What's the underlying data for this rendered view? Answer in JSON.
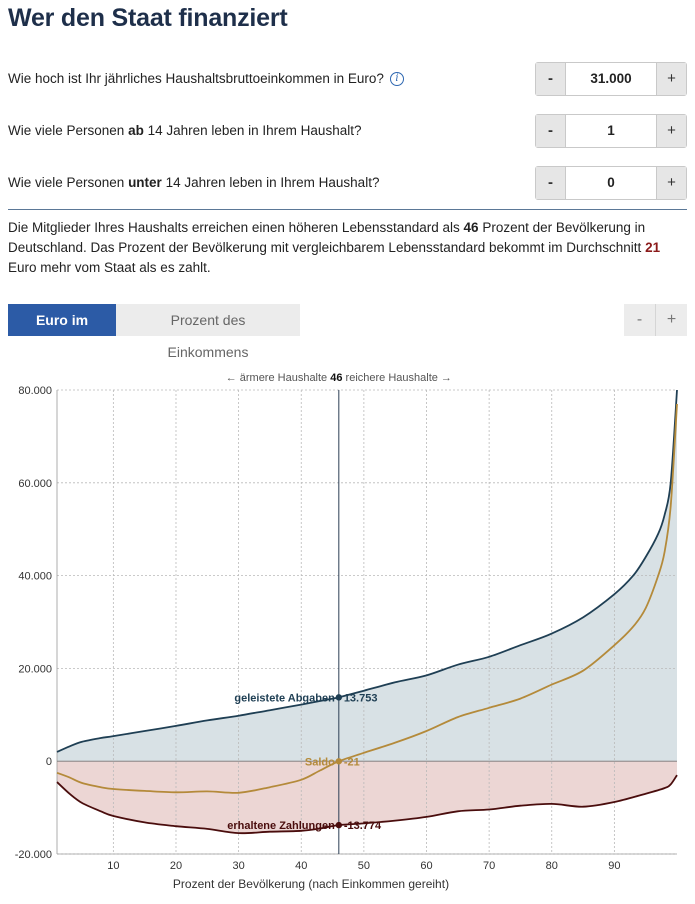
{
  "page": {
    "title": "Wer den Staat finanziert"
  },
  "questions": [
    {
      "label_pre": "Wie hoch ist Ihr jährliches Haushaltsbruttoeinkommen in Euro?",
      "label_bold": "",
      "label_post": "",
      "value": "31.000",
      "minus": "-",
      "plus": "+"
    },
    {
      "label_pre": "Wie viele Personen ",
      "label_bold": "ab",
      "label_post": " 14 Jahren leben in Ihrem Haushalt?",
      "value": "1",
      "minus": "-",
      "plus": "+"
    },
    {
      "label_pre": "Wie viele Personen ",
      "label_bold": "unter",
      "label_post": " 14 Jahren leben in Ihrem Haushalt?",
      "value": "0",
      "minus": "-",
      "plus": "+"
    }
  ],
  "info_icon": "info-icon",
  "summary": {
    "part1": "Die Mitglieder Ihres Haushalts erreichen einen höheren Lebensstandard als ",
    "percent": "46",
    "part2": " Prozent der Bevölkerung in Deutschland. Das Prozent der Bevölkerung mit vergleichbarem Lebensstandard bekommt im Durchschnitt ",
    "amount": "21",
    "part3": " Euro mehr vom Staat als es zahlt."
  },
  "tabs": {
    "active": "Euro im Jahr",
    "inactive": "Prozent des Einkommens"
  },
  "zoom": {
    "minus": "-",
    "plus": "+"
  },
  "colors": {
    "paid": "#1f3f54",
    "paid_fill": "#d8e1e5",
    "received": "#4a0d0d",
    "received_fill": "#ecd6d4",
    "saldo": "#b48a3a",
    "marker": "#2c3e55",
    "accent": "#2c5ba6"
  },
  "chart_data": {
    "type": "area",
    "top_label_left": "← ärmere Haushalte",
    "top_label_value": "46",
    "top_label_right": "reichere Haushalte →",
    "xlabel": "Prozent der Bevölkerung (nach Einkommen gereiht)",
    "xlim": [
      1,
      100
    ],
    "ylim": [
      -20000,
      80000
    ],
    "xticks": [
      10,
      20,
      30,
      40,
      50,
      60,
      70,
      80,
      90
    ],
    "yticks": [
      -20000,
      0,
      20000,
      40000,
      60000,
      80000
    ],
    "ytick_labels": [
      "-20.000",
      "0",
      "20.000",
      "40.000",
      "60.000",
      "80.000"
    ],
    "grid": true,
    "marker_x": 46,
    "series": [
      {
        "name": "geleistete Abgaben",
        "label": "geleistete Abgaben",
        "value_label": "13.753",
        "marker_value": 13753,
        "x": [
          1,
          3,
          5,
          8,
          10,
          15,
          20,
          25,
          30,
          35,
          40,
          45,
          46,
          50,
          55,
          60,
          65,
          70,
          75,
          80,
          85,
          90,
          93,
          95,
          97,
          98,
          99,
          100
        ],
        "y": [
          2000,
          3200,
          4200,
          5000,
          5400,
          6500,
          7600,
          8800,
          9800,
          11000,
          12200,
          13500,
          13753,
          15200,
          17000,
          18500,
          20800,
          22500,
          25000,
          27500,
          31000,
          36000,
          40000,
          44000,
          49000,
          53000,
          60000,
          80000
        ]
      },
      {
        "name": "Saldo",
        "label": "Saldo",
        "value_label": "-21",
        "marker_value": -21,
        "x": [
          1,
          3,
          5,
          8,
          10,
          15,
          20,
          25,
          30,
          35,
          40,
          43,
          46,
          50,
          55,
          60,
          65,
          70,
          75,
          80,
          85,
          90,
          93,
          95,
          97,
          98,
          99,
          100
        ],
        "y": [
          -2500,
          -3500,
          -4700,
          -5600,
          -6000,
          -6400,
          -6700,
          -6500,
          -6800,
          -5600,
          -4000,
          -2000,
          -21,
          1800,
          4000,
          6500,
          9500,
          11500,
          13500,
          16500,
          19500,
          25000,
          29000,
          33000,
          40000,
          45000,
          55000,
          77000
        ]
      },
      {
        "name": "erhaltene Zahlungen",
        "label": "erhaltene Zahlungen",
        "value_label": "-13.774",
        "marker_value": -13774,
        "x": [
          1,
          3,
          5,
          8,
          10,
          15,
          20,
          25,
          30,
          35,
          40,
          43,
          46,
          50,
          55,
          60,
          65,
          70,
          75,
          80,
          85,
          90,
          95,
          98,
          99,
          100
        ],
        "y": [
          -4500,
          -7000,
          -9000,
          -10800,
          -11800,
          -13200,
          -14000,
          -14600,
          -15500,
          -15200,
          -15000,
          -14500,
          -13774,
          -13400,
          -12800,
          -12000,
          -10800,
          -10400,
          -9600,
          -9200,
          -9800,
          -8800,
          -7000,
          -5800,
          -5000,
          -3000
        ]
      }
    ]
  }
}
